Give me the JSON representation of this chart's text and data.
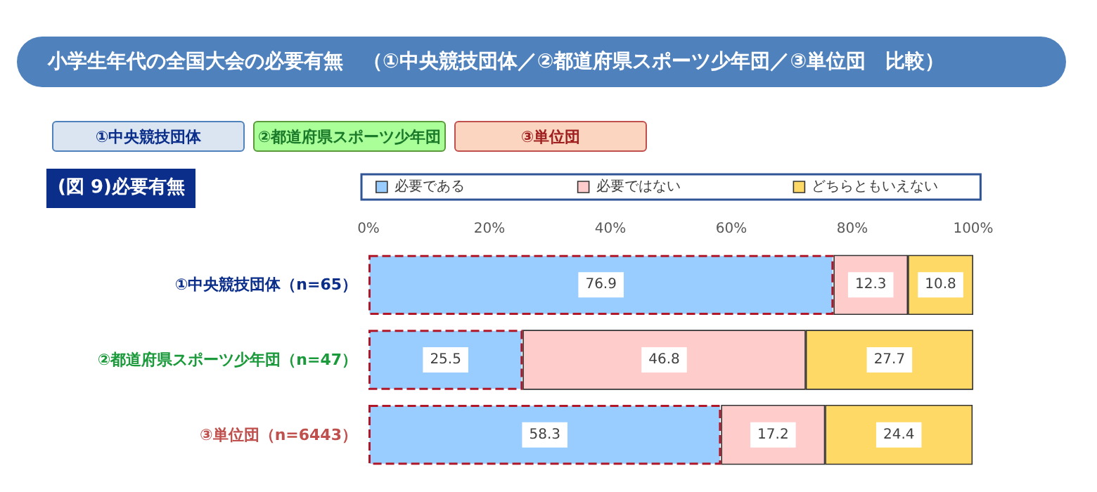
{
  "chart_data": {
    "type": "bar",
    "orientation": "horizontal",
    "stacked": true,
    "title": "小学生年代の全国大会の必要有無　（①中央競技団体／②都道府県スポーツ少年団／③単位団　比較）",
    "subtitle": "(図 9)必要有無",
    "annotations": [
      "①中央競技団体",
      "②都道府県スポーツ少年団",
      "③単位団"
    ],
    "categories": [
      "①中央競技団体（n=65）",
      "②都道府県スポーツ少年団（n=47）",
      "③単位団（n=6443）"
    ],
    "series": [
      {
        "name": "必要である",
        "color": "#99ccff",
        "values": [
          76.9,
          25.5,
          58.3
        ]
      },
      {
        "name": "必要ではない",
        "color": "#ffcccc",
        "values": [
          12.3,
          46.8,
          17.2
        ]
      },
      {
        "name": "どちらともいえない",
        "color": "#ffd966",
        "values": [
          10.8,
          27.7,
          24.4
        ]
      }
    ],
    "xlim": [
      0,
      100
    ],
    "xticks": [
      {
        "value": 0,
        "label": "0%"
      },
      {
        "value": 20,
        "label": "20%"
      },
      {
        "value": 40,
        "label": "40%"
      },
      {
        "value": 60,
        "label": "60%"
      },
      {
        "value": 80,
        "label": "80%"
      },
      {
        "value": 100,
        "label": "100%"
      }
    ],
    "data_labels": true,
    "legend": "top",
    "grid": false
  }
}
